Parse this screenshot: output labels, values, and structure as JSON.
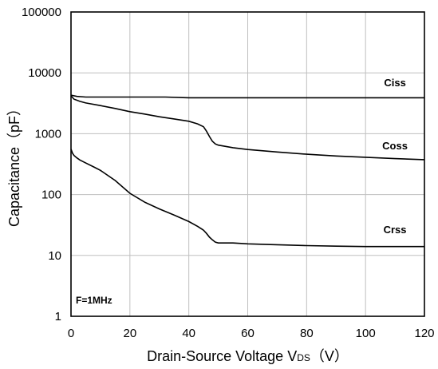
{
  "chart_data": {
    "type": "line",
    "title": "",
    "xlabel": "Drain-Source Voltage V",
    "xlabel_subscript": "DS",
    "xlabel_unit": "（V）",
    "ylabel": "Capacitance（pF）",
    "xlim": [
      0,
      120
    ],
    "ylim": [
      1,
      100000
    ],
    "y_scale": "log",
    "grid": true,
    "x_ticks": [
      0,
      20,
      40,
      60,
      80,
      100,
      120
    ],
    "y_ticks": [
      1,
      10,
      100,
      1000,
      10000,
      100000
    ],
    "x_tick_labels": [
      "0",
      "20",
      "40",
      "60",
      "80",
      "100",
      "120"
    ],
    "y_tick_labels": [
      "1",
      "10",
      "100",
      "1000",
      "10000",
      "100000"
    ],
    "annotation": "F=1MHz",
    "series": [
      {
        "name": "Ciss",
        "x": [
          0,
          2,
          5,
          10,
          20,
          30,
          32,
          40,
          45,
          47,
          50,
          60,
          80,
          100,
          120
        ],
        "y": [
          4300,
          4100,
          4000,
          4000,
          4000,
          4000,
          4000,
          3900,
          3900,
          3900,
          3900,
          3900,
          3900,
          3900,
          3900
        ]
      },
      {
        "name": "Coss",
        "x": [
          0,
          1,
          3,
          5,
          10,
          15,
          20,
          25,
          30,
          35,
          40,
          43,
          45,
          46,
          47,
          48,
          49,
          50,
          55,
          60,
          70,
          80,
          90,
          100,
          110,
          120
        ],
        "y": [
          4200,
          3700,
          3400,
          3200,
          2900,
          2600,
          2300,
          2100,
          1900,
          1750,
          1600,
          1450,
          1300,
          1100,
          900,
          750,
          680,
          650,
          590,
          550,
          500,
          460,
          430,
          410,
          390,
          375
        ]
      },
      {
        "name": "Crss",
        "x": [
          0,
          0.5,
          1,
          2,
          3,
          5,
          8,
          10,
          15,
          20,
          25,
          30,
          35,
          40,
          43,
          45,
          46,
          47,
          48,
          49,
          50,
          55,
          60,
          70,
          80,
          90,
          100,
          110,
          120
        ],
        "y": [
          560,
          480,
          440,
          400,
          370,
          330,
          280,
          250,
          170,
          105,
          75,
          58,
          46,
          36,
          30,
          26,
          23,
          20,
          18,
          16.5,
          16,
          16,
          15.5,
          15,
          14.5,
          14.2,
          14,
          14,
          14
        ]
      }
    ],
    "series_labels": [
      {
        "text": "Ciss",
        "x": 110,
        "y": 6000
      },
      {
        "text": "Coss",
        "x": 110,
        "y": 550
      },
      {
        "text": "Crss",
        "x": 110,
        "y": 23
      }
    ]
  }
}
